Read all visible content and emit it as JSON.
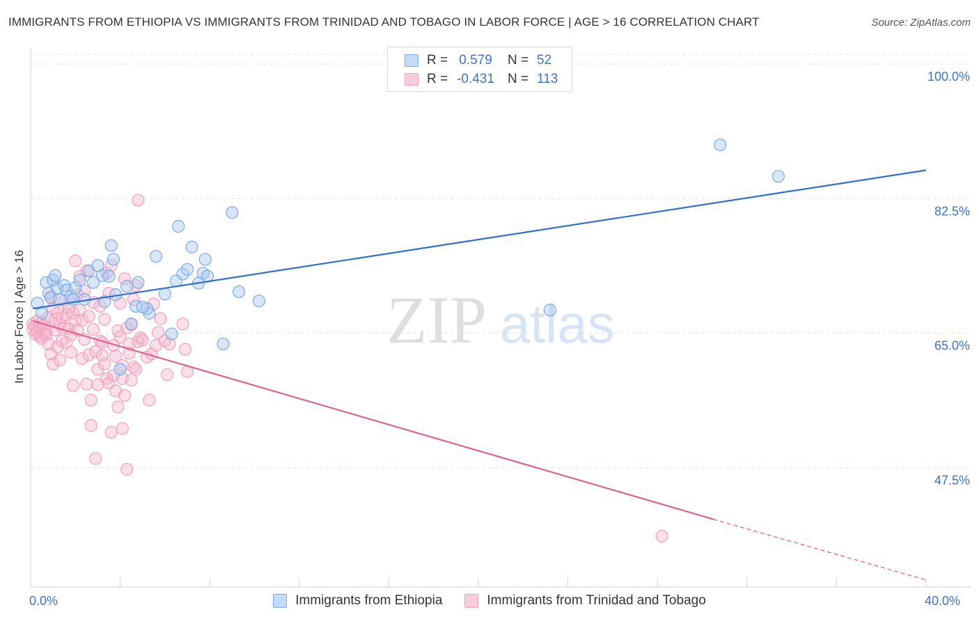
{
  "title": "IMMIGRANTS FROM ETHIOPIA VS IMMIGRANTS FROM TRINIDAD AND TOBAGO IN LABOR FORCE | AGE > 16 CORRELATION CHART",
  "source": "Source: ZipAtlas.com",
  "watermark": {
    "zip": "ZIP",
    "atlas": "atlas"
  },
  "legend": {
    "r_label": "R =",
    "n_label": "N =",
    "rows": [
      {
        "r": "0.579",
        "n": "52"
      },
      {
        "r": "-0.431",
        "n": "113"
      }
    ]
  },
  "chart_data": {
    "type": "scatter",
    "title": "IMMIGRANTS FROM ETHIOPIA VS IMMIGRANTS FROM TRINIDAD AND TOBAGO IN LABOR FORCE | AGE > 16 CORRELATION CHART",
    "xlabel": "",
    "ylabel": "In Labor Force | Age > 16",
    "xlim": [
      0,
      40
    ],
    "ylim": [
      32,
      102
    ],
    "x_tick_labels": [
      "0.0%",
      "40.0%"
    ],
    "y_ticks": [
      47.5,
      65.0,
      82.5,
      100.0
    ],
    "y_tick_labels": [
      "47.5%",
      "65.0%",
      "82.5%",
      "100.0%"
    ],
    "grid": true,
    "legend_position": "top-center",
    "series": [
      {
        "name": "Immigrants from Ethiopia",
        "color": "#7aaae8",
        "line_color": "#2f6fcd",
        "r": 0.579,
        "n": 52,
        "trend": {
          "x": [
            0.1,
            40.0
          ],
          "y": [
            68.2,
            86.2
          ]
        },
        "points": [
          [
            0.3,
            68.9
          ],
          [
            0.5,
            67.6
          ],
          [
            0.7,
            71.6
          ],
          [
            0.8,
            70.2
          ],
          [
            0.9,
            69.6
          ],
          [
            1.0,
            71.9
          ],
          [
            1.1,
            72.5
          ],
          [
            1.2,
            70.8
          ],
          [
            1.3,
            69.4
          ],
          [
            1.5,
            71.2
          ],
          [
            1.6,
            70.6
          ],
          [
            1.8,
            69.8
          ],
          [
            1.9,
            69.4
          ],
          [
            2.0,
            70.9
          ],
          [
            2.2,
            71.9
          ],
          [
            2.4,
            69.4
          ],
          [
            2.6,
            73.1
          ],
          [
            2.8,
            71.6
          ],
          [
            3.0,
            73.8
          ],
          [
            3.2,
            72.5
          ],
          [
            3.3,
            69.1
          ],
          [
            3.5,
            72.4
          ],
          [
            3.6,
            76.4
          ],
          [
            3.7,
            74.6
          ],
          [
            3.8,
            70.0
          ],
          [
            4.0,
            60.3
          ],
          [
            4.3,
            71.1
          ],
          [
            4.5,
            66.2
          ],
          [
            4.8,
            71.6
          ],
          [
            5.3,
            67.6
          ],
          [
            5.2,
            68.2
          ],
          [
            5.6,
            75.0
          ],
          [
            6.0,
            70.1
          ],
          [
            6.3,
            64.9
          ],
          [
            6.5,
            71.8
          ],
          [
            6.6,
            78.9
          ],
          [
            6.8,
            72.7
          ],
          [
            7.0,
            73.3
          ],
          [
            7.2,
            76.2
          ],
          [
            7.5,
            71.5
          ],
          [
            7.7,
            72.8
          ],
          [
            7.8,
            74.6
          ],
          [
            7.9,
            72.4
          ],
          [
            8.6,
            63.6
          ],
          [
            9.0,
            80.7
          ],
          [
            9.3,
            70.4
          ],
          [
            10.2,
            69.2
          ],
          [
            4.7,
            68.5
          ],
          [
            23.2,
            68.0
          ],
          [
            30.8,
            89.5
          ],
          [
            33.4,
            85.4
          ],
          [
            5.0,
            68.4
          ]
        ]
      },
      {
        "name": "Immigrants from Trinidad and Tobago",
        "color": "#f0a0bc",
        "line_color": "#e0608e",
        "r": -0.431,
        "n": 113,
        "trend": {
          "x": [
            0.1,
            30.5
          ],
          "y": [
            66.6,
            40.8
          ]
        },
        "trend_dashed": {
          "x": [
            30.5,
            40.0
          ],
          "y": [
            40.8,
            32.9
          ]
        },
        "points": [
          [
            0.1,
            66.2
          ],
          [
            0.1,
            65.5
          ],
          [
            0.2,
            64.9
          ],
          [
            0.2,
            66.0
          ],
          [
            0.3,
            65.2
          ],
          [
            0.3,
            66.6
          ],
          [
            0.4,
            64.6
          ],
          [
            0.4,
            65.8
          ],
          [
            0.5,
            66.4
          ],
          [
            0.5,
            64.3
          ],
          [
            0.6,
            65.0
          ],
          [
            0.6,
            66.0
          ],
          [
            0.7,
            65.3
          ],
          [
            0.7,
            64.8
          ],
          [
            0.8,
            67.1
          ],
          [
            0.8,
            63.6
          ],
          [
            0.9,
            69.8
          ],
          [
            0.9,
            62.3
          ],
          [
            1.0,
            61.0
          ],
          [
            1.0,
            68.2
          ],
          [
            1.1,
            66.8
          ],
          [
            1.1,
            65.4
          ],
          [
            1.2,
            67.6
          ],
          [
            1.2,
            63.2
          ],
          [
            1.3,
            61.5
          ],
          [
            1.3,
            66.1
          ],
          [
            1.4,
            67.0
          ],
          [
            1.4,
            64.0
          ],
          [
            1.5,
            69.2
          ],
          [
            1.5,
            65.7
          ],
          [
            1.6,
            63.8
          ],
          [
            1.6,
            67.4
          ],
          [
            1.7,
            65.6
          ],
          [
            1.7,
            68.3
          ],
          [
            1.8,
            62.5
          ],
          [
            1.8,
            64.8
          ],
          [
            1.9,
            67.6
          ],
          [
            1.9,
            58.2
          ],
          [
            2.0,
            74.4
          ],
          [
            2.0,
            66.6
          ],
          [
            2.1,
            70.0
          ],
          [
            2.1,
            65.4
          ],
          [
            2.2,
            72.4
          ],
          [
            2.2,
            68.0
          ],
          [
            2.3,
            61.7
          ],
          [
            2.3,
            66.7
          ],
          [
            2.4,
            70.5
          ],
          [
            2.4,
            64.2
          ],
          [
            2.5,
            73.1
          ],
          [
            2.5,
            58.4
          ],
          [
            2.6,
            62.2
          ],
          [
            2.6,
            67.2
          ],
          [
            2.7,
            56.3
          ],
          [
            2.7,
            53.0
          ],
          [
            2.8,
            65.5
          ],
          [
            2.8,
            69.0
          ],
          [
            2.9,
            62.6
          ],
          [
            2.9,
            48.7
          ],
          [
            3.0,
            58.3
          ],
          [
            3.0,
            60.3
          ],
          [
            3.1,
            64.0
          ],
          [
            3.1,
            68.5
          ],
          [
            3.2,
            62.1
          ],
          [
            3.2,
            63.8
          ],
          [
            3.3,
            66.8
          ],
          [
            3.3,
            61.0
          ],
          [
            3.4,
            59.1
          ],
          [
            3.4,
            72.8
          ],
          [
            3.5,
            58.5
          ],
          [
            3.5,
            70.2
          ],
          [
            3.6,
            73.8
          ],
          [
            3.6,
            52.1
          ],
          [
            3.7,
            59.5
          ],
          [
            3.7,
            63.4
          ],
          [
            3.8,
            62.0
          ],
          [
            3.8,
            57.5
          ],
          [
            3.9,
            65.3
          ],
          [
            3.9,
            55.4
          ],
          [
            4.0,
            68.9
          ],
          [
            4.0,
            64.5
          ],
          [
            4.1,
            59.1
          ],
          [
            4.1,
            52.6
          ],
          [
            4.2,
            56.9
          ],
          [
            4.2,
            72.1
          ],
          [
            4.3,
            65.7
          ],
          [
            4.3,
            47.3
          ],
          [
            4.4,
            63.6
          ],
          [
            4.4,
            62.4
          ],
          [
            4.5,
            66.1
          ],
          [
            4.5,
            58.9
          ],
          [
            4.6,
            60.6
          ],
          [
            4.6,
            69.4
          ],
          [
            4.7,
            71.2
          ],
          [
            4.7,
            60.3
          ],
          [
            4.8,
            63.9
          ],
          [
            4.8,
            82.3
          ],
          [
            4.9,
            64.4
          ],
          [
            5.0,
            64.1
          ],
          [
            5.2,
            61.9
          ],
          [
            5.3,
            56.3
          ],
          [
            5.4,
            62.3
          ],
          [
            5.5,
            68.8
          ],
          [
            5.6,
            63.4
          ],
          [
            5.7,
            65.1
          ],
          [
            5.8,
            66.9
          ],
          [
            6.0,
            64.0
          ],
          [
            6.1,
            59.6
          ],
          [
            6.2,
            63.6
          ],
          [
            6.8,
            66.2
          ],
          [
            6.9,
            62.9
          ],
          [
            7.0,
            60.0
          ],
          [
            28.2,
            38.6
          ],
          [
            4.1,
            60.8
          ]
        ]
      }
    ]
  }
}
